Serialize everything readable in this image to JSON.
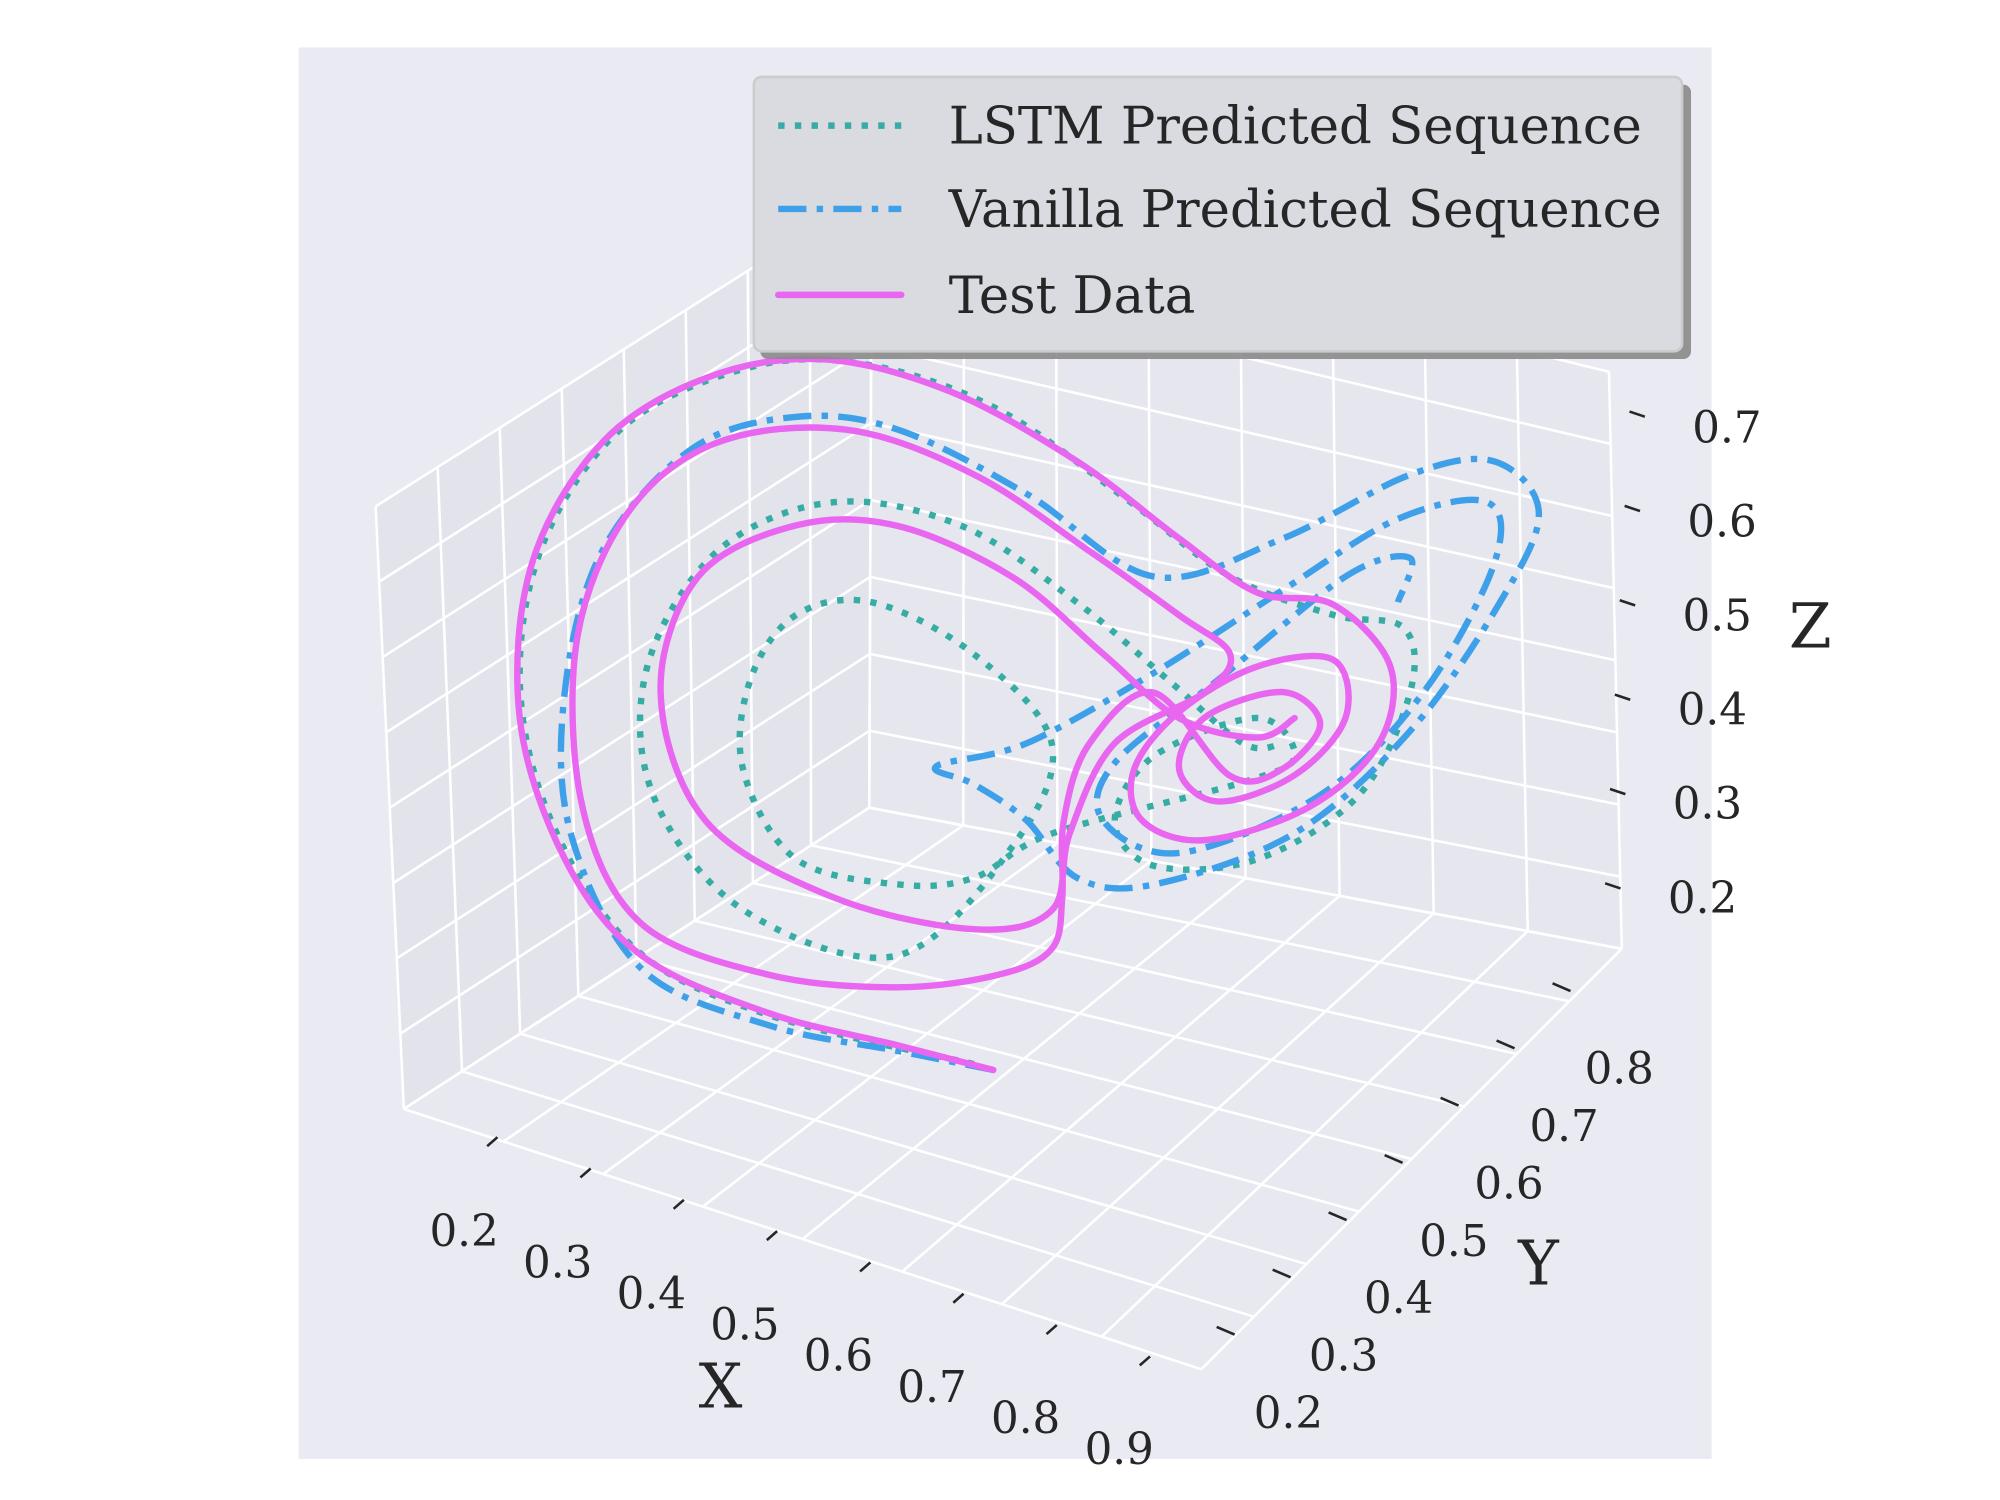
{
  "chart_data": {
    "type": "line",
    "projection": "3d",
    "grid": true,
    "legend_placement": "top-right",
    "xlabel": "X",
    "ylabel": "Y",
    "zlabel": "Z",
    "x_ticks": [
      "0.2",
      "0.3",
      "0.4",
      "0.5",
      "0.6",
      "0.7",
      "0.8",
      "0.9"
    ],
    "y_ticks": [
      "0.2",
      "0.3",
      "0.4",
      "0.5",
      "0.6",
      "0.7",
      "0.8"
    ],
    "z_ticks": [
      "0.2",
      "0.3",
      "0.4",
      "0.5",
      "0.6",
      "0.7"
    ],
    "xlim": [
      0.14,
      0.95
    ],
    "ylim": [
      0.13,
      0.88
    ],
    "zlim": [
      0.13,
      0.77
    ],
    "colors": {
      "axes_bg": "#eaeaf2",
      "pane": "#e4e4ec",
      "grid": "#ffffff",
      "legend_bg": "#dadbe0"
    },
    "series": [
      {
        "name": "LSTM Predicted Sequence",
        "color": "#35ada4",
        "linestyle": "dotted",
        "points": [
          [
            0.464,
            0.464,
            0.125
          ],
          [
            0.327,
            0.327,
            0.215
          ],
          [
            0.238,
            0.238,
            0.31
          ],
          [
            0.182,
            0.182,
            0.462
          ],
          [
            0.161,
            0.161,
            0.619
          ],
          [
            0.178,
            0.178,
            0.765
          ],
          [
            0.233,
            0.233,
            0.873
          ],
          [
            0.319,
            0.319,
            0.911
          ],
          [
            0.396,
            0.396,
            0.89
          ],
          [
            0.481,
            0.481,
            0.819
          ],
          [
            0.567,
            0.567,
            0.699
          ],
          [
            0.635,
            0.635,
            0.599
          ],
          [
            0.704,
            0.704,
            0.539
          ],
          [
            0.751,
            0.751,
            0.512
          ],
          [
            0.755,
            0.755,
            0.442
          ],
          [
            0.721,
            0.721,
            0.342
          ],
          [
            0.653,
            0.653,
            0.292
          ],
          [
            0.584,
            0.584,
            0.304
          ],
          [
            0.558,
            0.558,
            0.359
          ],
          [
            0.584,
            0.584,
            0.421
          ],
          [
            0.653,
            0.653,
            0.443
          ],
          [
            0.678,
            0.678,
            0.395
          ],
          [
            0.644,
            0.644,
            0.377
          ],
          [
            0.516,
            0.516,
            0.357
          ],
          [
            0.464,
            0.464,
            0.324
          ],
          [
            0.413,
            0.413,
            0.331
          ],
          [
            0.345,
            0.345,
            0.377
          ],
          [
            0.31,
            0.31,
            0.482
          ],
          [
            0.315,
            0.315,
            0.577
          ],
          [
            0.345,
            0.345,
            0.637
          ],
          [
            0.396,
            0.396,
            0.637
          ],
          [
            0.464,
            0.464,
            0.563
          ],
          [
            0.516,
            0.516,
            0.453
          ],
          [
            0.49,
            0.49,
            0.351
          ],
          [
            0.413,
            0.413,
            0.255
          ],
          [
            0.31,
            0.31,
            0.332
          ],
          [
            0.25,
            0.25,
            0.471
          ],
          [
            0.246,
            0.246,
            0.609
          ],
          [
            0.293,
            0.293,
            0.72
          ],
          [
            0.37,
            0.37,
            0.751
          ],
          [
            0.456,
            0.456,
            0.702
          ],
          [
            0.533,
            0.533,
            0.599
          ],
          [
            0.593,
            0.593,
            0.501
          ],
          [
            0.644,
            0.644,
            0.418
          ],
          [
            0.67,
            0.67,
            0.411
          ]
        ]
      },
      {
        "name": "Vanilla Predicted Sequence",
        "color": "#3fa0ea",
        "linestyle": "dashdot",
        "points": [
          [
            0.477,
            0.477,
            0.115
          ],
          [
            0.413,
            0.413,
            0.153
          ],
          [
            0.327,
            0.327,
            0.204
          ],
          [
            0.242,
            0.242,
            0.288
          ],
          [
            0.195,
            0.195,
            0.445
          ],
          [
            0.191,
            0.191,
            0.597
          ],
          [
            0.216,
            0.216,
            0.741
          ],
          [
            0.276,
            0.276,
            0.834
          ],
          [
            0.345,
            0.345,
            0.849
          ],
          [
            0.413,
            0.413,
            0.817
          ],
          [
            0.499,
            0.499,
            0.725
          ],
          [
            0.584,
            0.584,
            0.613
          ],
          [
            0.67,
            0.67,
            0.63
          ],
          [
            0.755,
            0.755,
            0.675
          ],
          [
            0.811,
            0.811,
            0.674
          ],
          [
            0.841,
            0.841,
            0.611
          ],
          [
            0.815,
            0.815,
            0.522
          ],
          [
            0.755,
            0.755,
            0.401
          ],
          [
            0.678,
            0.678,
            0.313
          ],
          [
            0.584,
            0.584,
            0.284
          ],
          [
            0.533,
            0.533,
            0.305
          ],
          [
            0.499,
            0.499,
            0.376
          ],
          [
            0.464,
            0.464,
            0.424
          ],
          [
            0.439,
            0.439,
            0.45
          ],
          [
            0.499,
            0.499,
            0.458
          ],
          [
            0.584,
            0.584,
            0.51
          ],
          [
            0.67,
            0.67,
            0.575
          ],
          [
            0.747,
            0.747,
            0.63
          ],
          [
            0.807,
            0.807,
            0.631
          ],
          [
            0.811,
            0.811,
            0.564
          ],
          [
            0.764,
            0.764,
            0.44
          ],
          [
            0.695,
            0.695,
            0.349
          ],
          [
            0.601,
            0.601,
            0.313
          ],
          [
            0.55,
            0.55,
            0.362
          ],
          [
            0.558,
            0.558,
            0.421
          ],
          [
            0.627,
            0.627,
            0.491
          ],
          [
            0.712,
            0.712,
            0.578
          ],
          [
            0.755,
            0.755,
            0.586
          ],
          [
            0.747,
            0.747,
            0.541
          ]
        ]
      },
      {
        "name": "Test Data",
        "color": "#e866f0",
        "linestyle": "solid",
        "points": [
          [
            0.477,
            0.477,
            0.115
          ],
          [
            0.413,
            0.413,
            0.159
          ],
          [
            0.327,
            0.327,
            0.217
          ],
          [
            0.242,
            0.242,
            0.302
          ],
          [
            0.191,
            0.191,
            0.419
          ],
          [
            0.161,
            0.161,
            0.578
          ],
          [
            0.169,
            0.169,
            0.74
          ],
          [
            0.216,
            0.216,
            0.857
          ],
          [
            0.285,
            0.285,
            0.907
          ],
          [
            0.362,
            0.362,
            0.906
          ],
          [
            0.447,
            0.447,
            0.849
          ],
          [
            0.533,
            0.533,
            0.75
          ],
          [
            0.601,
            0.601,
            0.649
          ],
          [
            0.653,
            0.653,
            0.577
          ],
          [
            0.704,
            0.704,
            0.55
          ],
          [
            0.742,
            0.742,
            0.473
          ],
          [
            0.734,
            0.734,
            0.393
          ],
          [
            0.687,
            0.687,
            0.338
          ],
          [
            0.618,
            0.618,
            0.322
          ],
          [
            0.576,
            0.576,
            0.355
          ],
          [
            0.571,
            0.571,
            0.411
          ],
          [
            0.601,
            0.601,
            0.464
          ],
          [
            0.653,
            0.653,
            0.498
          ],
          [
            0.704,
            0.704,
            0.491
          ],
          [
            0.712,
            0.712,
            0.427
          ],
          [
            0.678,
            0.678,
            0.375
          ],
          [
            0.627,
            0.627,
            0.361
          ],
          [
            0.601,
            0.601,
            0.402
          ],
          [
            0.618,
            0.618,
            0.453
          ],
          [
            0.67,
            0.67,
            0.466
          ],
          [
            0.695,
            0.695,
            0.425
          ],
          [
            0.67,
            0.67,
            0.384
          ],
          [
            0.635,
            0.635,
            0.386
          ],
          [
            0.584,
            0.584,
            0.489
          ],
          [
            0.541,
            0.541,
            0.446
          ],
          [
            0.524,
            0.524,
            0.369
          ],
          [
            0.523,
            0.523,
            0.287
          ],
          [
            0.516,
            0.516,
            0.234
          ],
          [
            0.481,
            0.481,
            0.216
          ],
          [
            0.413,
            0.413,
            0.221
          ],
          [
            0.327,
            0.327,
            0.258
          ],
          [
            0.242,
            0.242,
            0.336
          ],
          [
            0.203,
            0.203,
            0.47
          ],
          [
            0.199,
            0.199,
            0.649
          ],
          [
            0.233,
            0.233,
            0.777
          ],
          [
            0.293,
            0.293,
            0.836
          ],
          [
            0.379,
            0.379,
            0.826
          ],
          [
            0.464,
            0.464,
            0.755
          ],
          [
            0.541,
            0.541,
            0.652
          ],
          [
            0.601,
            0.601,
            0.567
          ],
          [
            0.635,
            0.635,
            0.516
          ],
          [
            0.618,
            0.618,
            0.48
          ],
          [
            0.558,
            0.558,
            0.442
          ],
          [
            0.528,
            0.528,
            0.354
          ],
          [
            0.516,
            0.516,
            0.275
          ],
          [
            0.464,
            0.464,
            0.269
          ],
          [
            0.37,
            0.37,
            0.329
          ],
          [
            0.285,
            0.285,
            0.434
          ],
          [
            0.255,
            0.255,
            0.579
          ],
          [
            0.28,
            0.28,
            0.696
          ],
          [
            0.345,
            0.345,
            0.733
          ],
          [
            0.413,
            0.413,
            0.714
          ],
          [
            0.49,
            0.49,
            0.638
          ],
          [
            0.55,
            0.55,
            0.54
          ],
          [
            0.601,
            0.601,
            0.457
          ],
          [
            0.653,
            0.653,
            0.422
          ],
          [
            0.678,
            0.678,
            0.436
          ]
        ]
      }
    ]
  }
}
